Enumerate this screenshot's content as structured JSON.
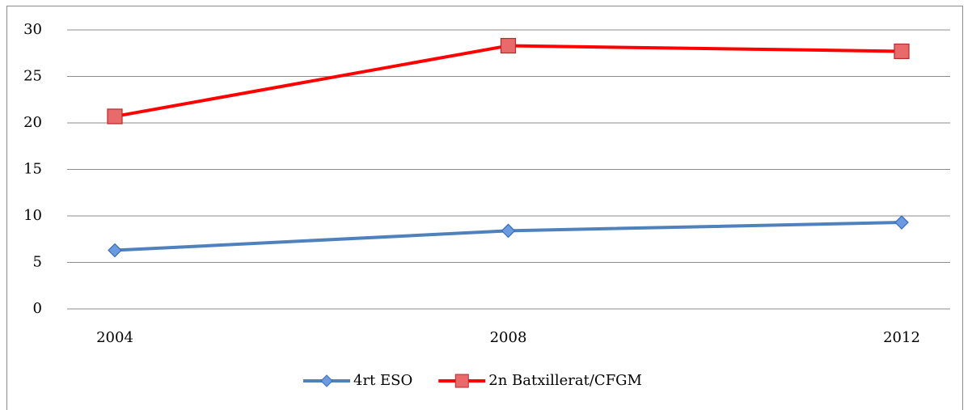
{
  "chart_data": {
    "type": "line",
    "categories": [
      "2004",
      "2008",
      "2012"
    ],
    "series": [
      {
        "name": "4rt ESO",
        "color": "#4f81bd",
        "values": [
          6.3,
          8.4,
          9.3
        ]
      },
      {
        "name": "2n Batxillerat/CFGM",
        "color": "#ff0000",
        "values": [
          20.7,
          28.3,
          27.7
        ]
      }
    ],
    "ylim": [
      0,
      30
    ],
    "yticks": [
      0,
      5,
      10,
      15,
      20,
      25,
      30
    ],
    "grid": true,
    "legend": "bottom"
  }
}
